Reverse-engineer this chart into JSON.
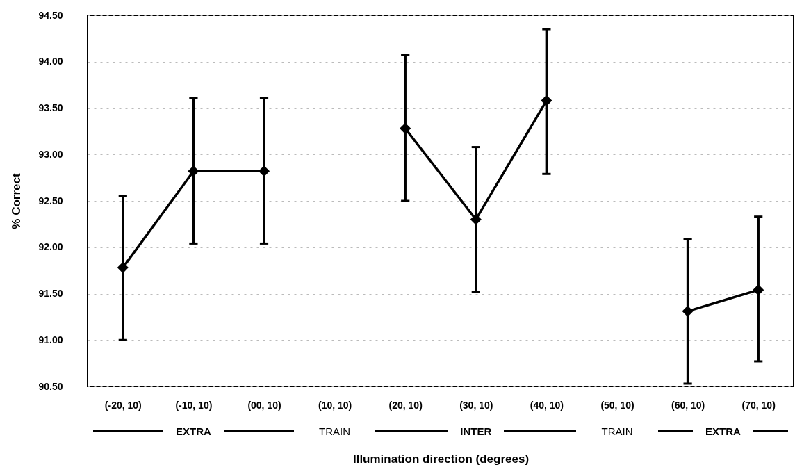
{
  "chart_data": {
    "type": "line",
    "xlabel": "Illumination direction (degrees)",
    "ylabel": "% Correct",
    "categories": [
      "(-20, 10)",
      "(-10, 10)",
      "(00, 10)",
      "(10, 10)",
      "(20, 10)",
      "(30, 10)",
      "(40, 10)",
      "(50, 10)",
      "(60, 10)",
      "(70, 10)"
    ],
    "series": [
      {
        "color": "#000000",
        "values": [
          91.78,
          92.82,
          92.82,
          null,
          93.28,
          92.3,
          93.58,
          null,
          91.31,
          91.54
        ],
        "errors": [
          [
            91.0,
            92.55
          ],
          [
            92.04,
            93.61
          ],
          [
            92.04,
            93.61
          ],
          null,
          [
            92.5,
            94.07
          ],
          [
            91.52,
            93.08
          ],
          [
            92.79,
            94.35
          ],
          null,
          [
            90.53,
            92.09
          ],
          [
            90.77,
            92.33
          ]
        ]
      }
    ],
    "ylim": [
      90.5,
      94.5
    ],
    "yticks": [
      {
        "value": 90.5,
        "label": "90.50"
      },
      {
        "value": 91,
        "label": "91.00"
      },
      {
        "value": 91.5,
        "label": "91.50"
      },
      {
        "value": 92,
        "label": "92.00"
      },
      {
        "value": 92.5,
        "label": "92.50"
      },
      {
        "value": 93,
        "label": "93.00"
      },
      {
        "value": 93.5,
        "label": "93.50"
      },
      {
        "value": 94,
        "label": "94.00"
      },
      {
        "value": 94.5,
        "label": "94.50"
      }
    ],
    "grid": "y",
    "marker": "diamond",
    "line_style": "solid",
    "annotations": [
      "EXTRA",
      "TRAIN",
      "INTER",
      "TRAIN",
      "EXTRA"
    ]
  }
}
